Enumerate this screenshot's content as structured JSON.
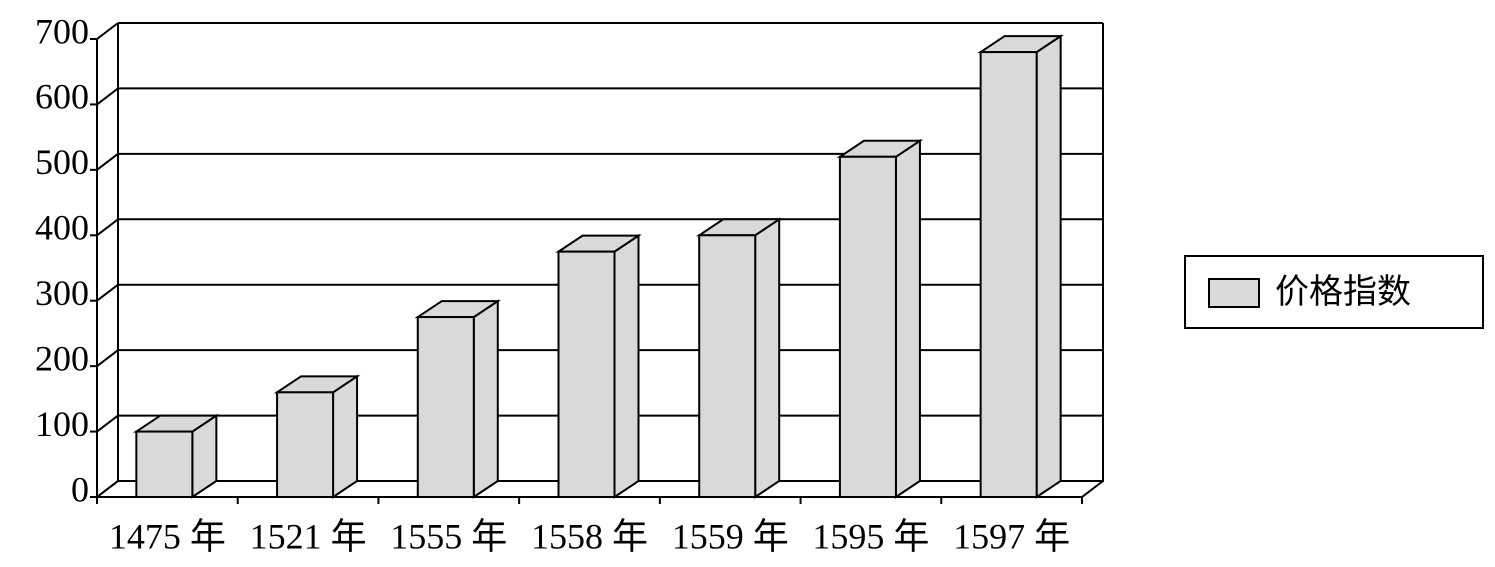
{
  "chart_data": {
    "type": "bar3d",
    "categories": [
      "1475 年",
      "1521 年",
      "1555 年",
      "1558 年",
      "1559 年",
      "1595 年",
      "1597 年"
    ],
    "series": [
      {
        "name": "价格指数",
        "color": "#d9d9d9",
        "values": [
          100,
          160,
          275,
          375,
          400,
          520,
          680
        ]
      }
    ],
    "ylim": [
      0,
      700
    ],
    "yticks": [
      0,
      100,
      200,
      300,
      400,
      500,
      600,
      700
    ],
    "grid": true,
    "legend": "right"
  }
}
